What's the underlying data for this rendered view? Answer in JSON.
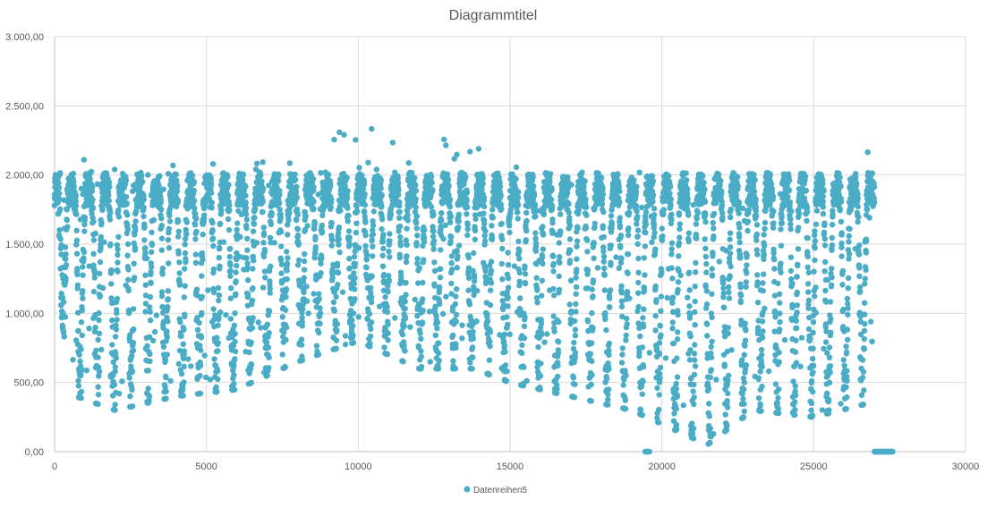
{
  "chart_data": {
    "type": "scatter",
    "title": "Diagrammtitel",
    "xlabel": "",
    "ylabel": "",
    "xlim": [
      0,
      30000
    ],
    "ylim": [
      0,
      3000
    ],
    "x_ticks": [
      "0",
      "5000",
      "10000",
      "15000",
      "20000",
      "25000",
      "30000"
    ],
    "y_ticks": [
      "0,00",
      "500,00",
      "1.000,00",
      "1.500,00",
      "2.000,00",
      "2.500,00",
      "3.000,00"
    ],
    "grid": "on",
    "legend_position": "bottom",
    "series": [
      {
        "name": "Datenreihen5",
        "color": "#4bacc6",
        "x_range": [
          0,
          27600
        ],
        "cycle_length": 560,
        "envelope": [
          [
            0,
            2100,
            1200
          ],
          [
            700,
            2150,
            400
          ],
          [
            2000,
            2100,
            300
          ],
          [
            4000,
            2200,
            400
          ],
          [
            6000,
            2200,
            450
          ],
          [
            8000,
            2250,
            650
          ],
          [
            10000,
            2350,
            800
          ],
          [
            12000,
            2300,
            600
          ],
          [
            13800,
            2400,
            600
          ],
          [
            15000,
            2150,
            500
          ],
          [
            17000,
            2100,
            400
          ],
          [
            19000,
            2050,
            300
          ],
          [
            21500,
            2000,
            50
          ],
          [
            23000,
            2050,
            300
          ],
          [
            25000,
            2150,
            250
          ],
          [
            26800,
            2250,
            350
          ],
          [
            27000,
            1900,
            1000
          ]
        ],
        "zero_clusters": [
          [
            19450,
            19600
          ],
          [
            27000,
            27600
          ]
        ]
      }
    ]
  }
}
